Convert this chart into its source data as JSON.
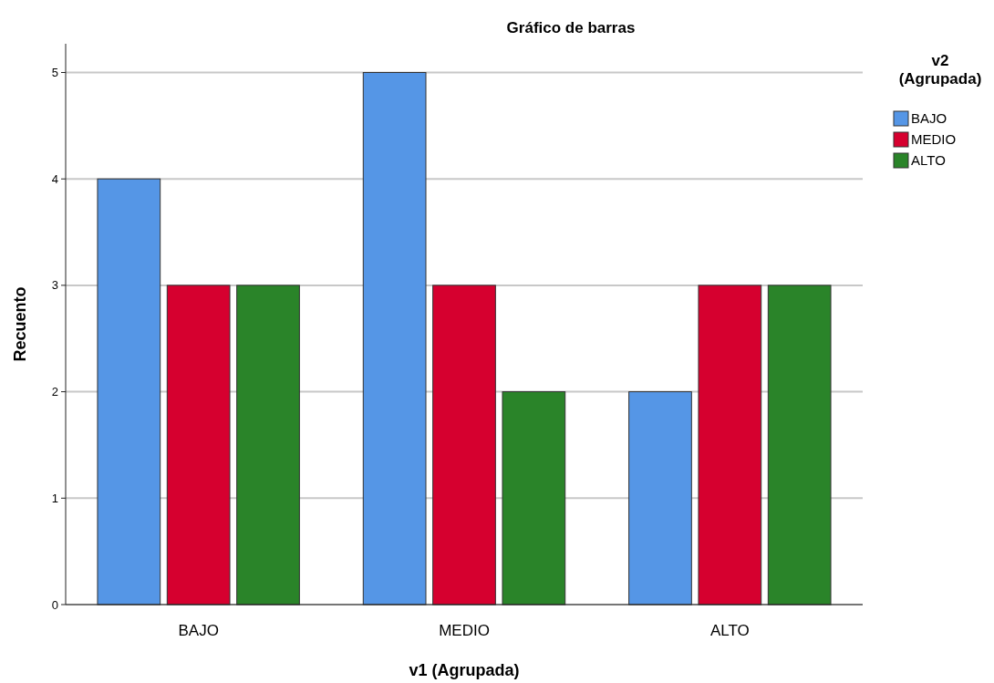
{
  "chart_data": {
    "type": "bar",
    "title": "Gráfico de barras",
    "xlabel": "v1 (Agrupada)",
    "ylabel": "Recuento",
    "legend_title": "v2\n(Agrupada)",
    "categories": [
      "BAJO",
      "MEDIO",
      "ALTO"
    ],
    "series": [
      {
        "name": "BAJO",
        "color": "#5596e6",
        "values": [
          4,
          5,
          2
        ]
      },
      {
        "name": "MEDIO",
        "color": "#d6002f",
        "values": [
          3,
          3,
          3
        ]
      },
      {
        "name": "ALTO",
        "color": "#2a8429",
        "values": [
          3,
          2,
          3
        ]
      }
    ],
    "ylim": [
      0,
      5.27
    ],
    "yticks": [
      0,
      1,
      2,
      3,
      4,
      5
    ],
    "grid": "y",
    "legend": "top right"
  }
}
